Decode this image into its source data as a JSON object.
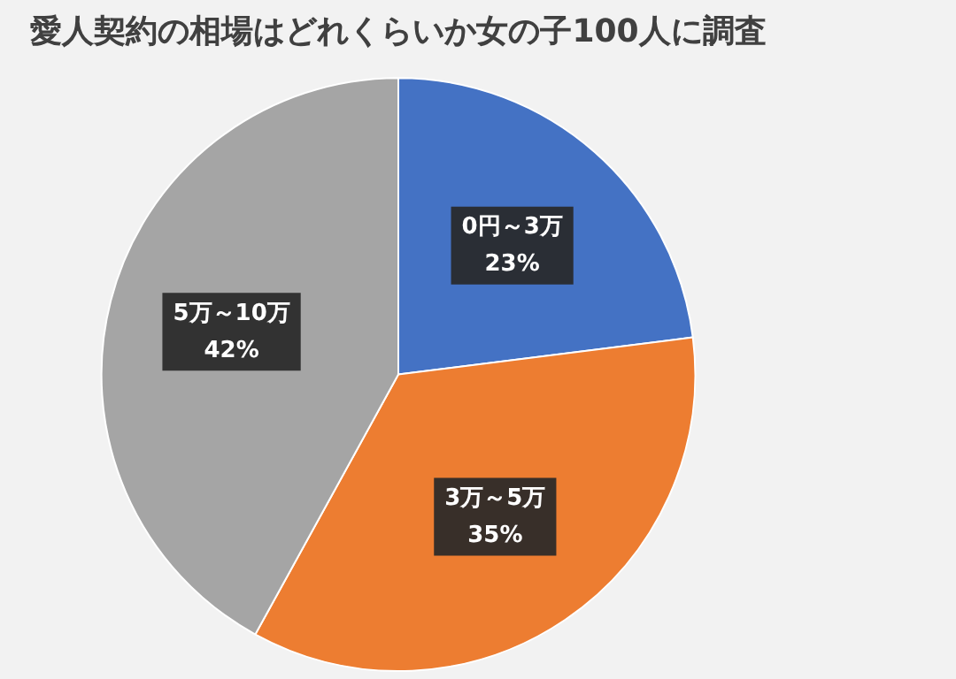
{
  "chart_data": {
    "type": "pie",
    "title": "愛人契約の相場はどれくらいか女の子100人に調査",
    "categories": [
      "0円～3万",
      "3万～5万",
      "5万～10万"
    ],
    "values": [
      23,
      35,
      42
    ],
    "colors": [
      "#4472c4",
      "#ed7d31",
      "#a5a5a5"
    ],
    "value_labels": [
      "23%",
      "35%",
      "42%"
    ],
    "legend": false
  }
}
